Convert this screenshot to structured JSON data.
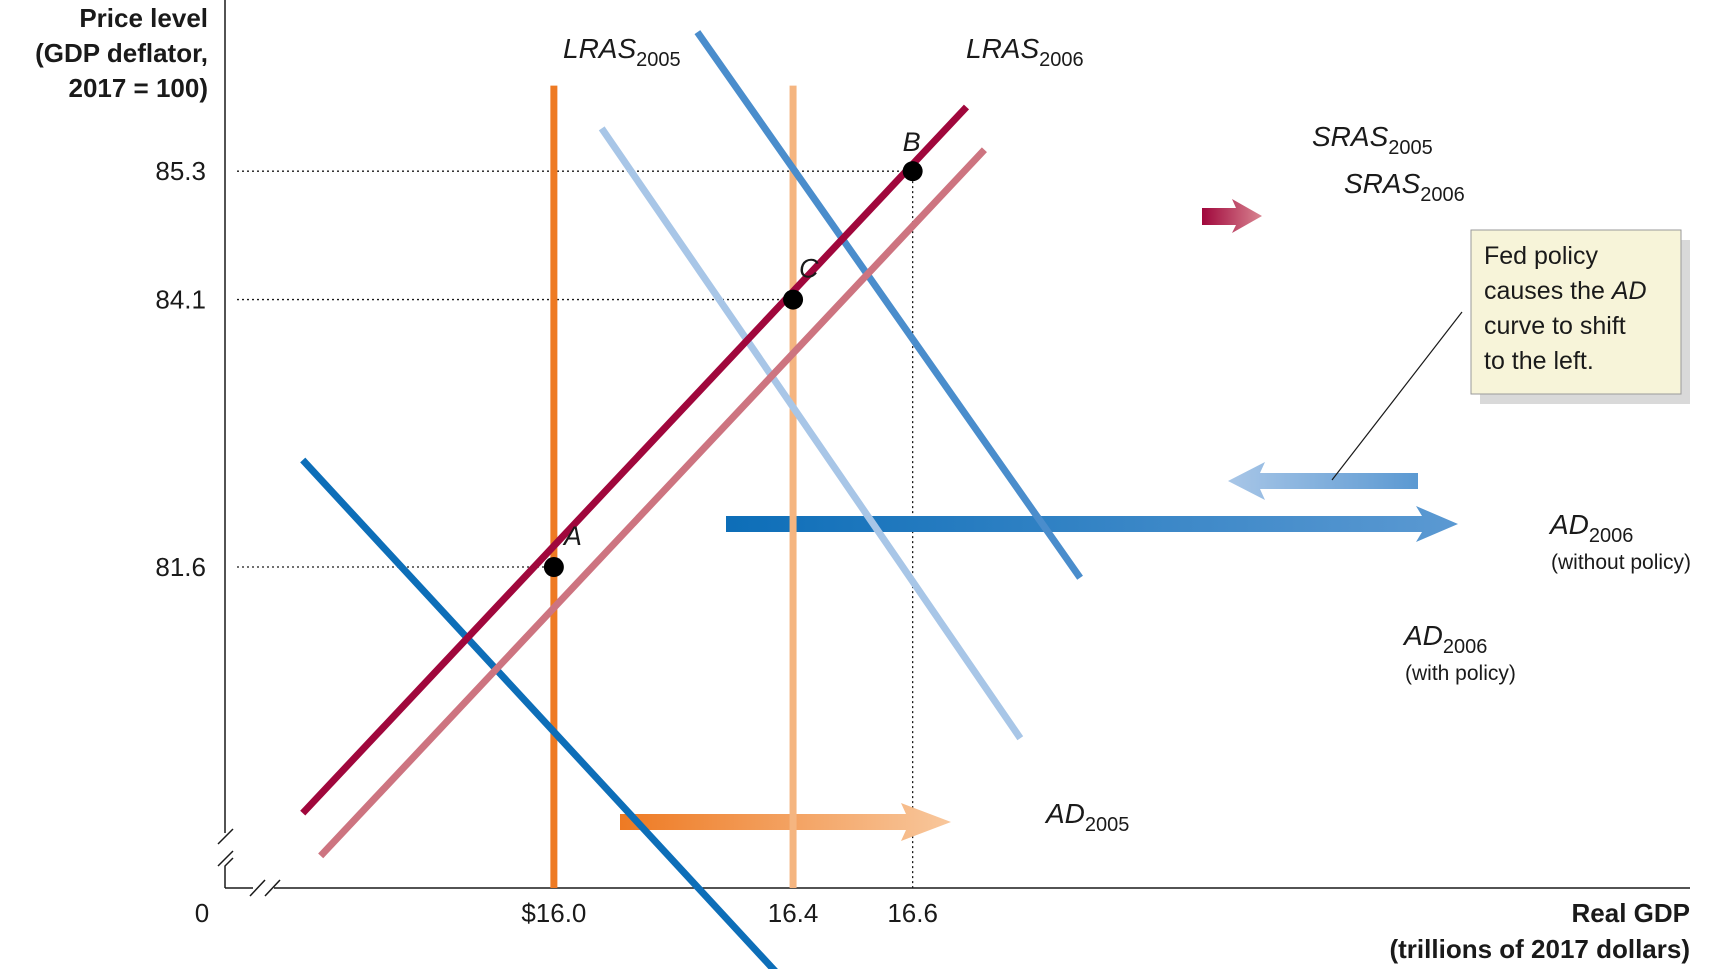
{
  "chart_data": {
    "type": "line",
    "title": "",
    "ylabel_lines": [
      "Price level",
      "(GDP deflator,",
      "2017 = 100)"
    ],
    "xlabel_lines": [
      "Real GDP",
      "(trillions of 2017 dollars)"
    ],
    "origin_label": "0",
    "x_ticks": [
      "$16.0",
      "16.4",
      "16.6"
    ],
    "x_tick_values": [
      16.0,
      16.4,
      16.6
    ],
    "y_ticks": [
      "81.6",
      "84.1",
      "85.3"
    ],
    "y_tick_values": [
      81.6,
      84.1,
      85.3
    ],
    "xlim": [
      15.45,
      17.9
    ],
    "ylim": [
      78.6,
      86.9
    ],
    "grid": false,
    "axis_breaks": true,
    "series": [
      {
        "key": "lras2005",
        "label_main": "LRAS",
        "label_sub": "2005",
        "note": "",
        "color": "#EE7A23",
        "x": [
          16.0,
          16.0
        ],
        "y": [
          78.6,
          86.1
        ]
      },
      {
        "key": "lras2006",
        "label_main": "LRAS",
        "label_sub": "2006",
        "note": "",
        "color": "#F5B580",
        "x": [
          16.4,
          16.4
        ],
        "y": [
          78.6,
          86.1
        ]
      },
      {
        "key": "sras2005",
        "label_main": "SRAS",
        "label_sub": "2005",
        "note": "",
        "color": "#A0073C",
        "x": [
          15.58,
          16.69
        ],
        "y": [
          79.3,
          85.9
        ]
      },
      {
        "key": "sras2006",
        "label_main": "SRAS",
        "label_sub": "2006",
        "note": "",
        "color": "#CD7480",
        "x": [
          15.61,
          16.72
        ],
        "y": [
          78.9,
          85.5
        ]
      },
      {
        "key": "ad2005",
        "label_main": "AD",
        "label_sub": "2005",
        "note": "",
        "color": "#0D6EB8",
        "x": [
          15.58,
          16.44
        ],
        "y": [
          82.6,
          77.4
        ]
      },
      {
        "key": "ad2006policy",
        "label_main": "AD",
        "label_sub": "2006",
        "note": "(with policy)",
        "color": "#A8C6E7",
        "x": [
          16.08,
          16.78
        ],
        "y": [
          85.7,
          80.0
        ]
      },
      {
        "key": "ad2006nopolicy",
        "label_main": "AD",
        "label_sub": "2006",
        "note": "(without policy)",
        "color": "#4A8DCC",
        "x": [
          16.24,
          16.88
        ],
        "y": [
          86.6,
          81.5
        ]
      }
    ],
    "points": [
      {
        "label": "A",
        "x": 16.0,
        "y": 81.6
      },
      {
        "label": "B",
        "x": 16.6,
        "y": 85.3
      },
      {
        "label": "C",
        "x": 16.4,
        "y": 84.1
      }
    ],
    "callout": {
      "lines": [
        "Fed policy",
        "causes the ",
        "curve to shift",
        "to the left."
      ],
      "italic_word": "AD",
      "bg": "#F7F4D9"
    }
  }
}
